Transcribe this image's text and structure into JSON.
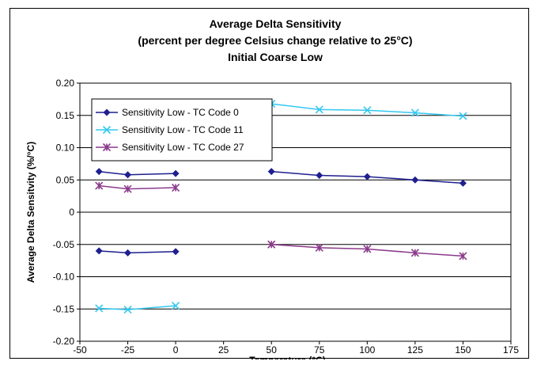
{
  "chart_data": {
    "type": "line",
    "title": [
      "Average Delta Sensitivity",
      "(percent per degree Celsius change relative to 25°C)",
      "Initial Coarse Low"
    ],
    "xlabel": "Temperature (°C)",
    "ylabel": "Average Delta Sensitvity (%/°C)",
    "xlim": [
      -50,
      175
    ],
    "ylim": [
      -0.2,
      0.2
    ],
    "xticks": [
      -50,
      -25,
      0,
      25,
      50,
      75,
      100,
      125,
      150,
      175
    ],
    "xtick_labels": [
      "-50",
      "-25",
      "0",
      "25",
      "50",
      "75",
      "100",
      "125",
      "150",
      "175"
    ],
    "yticks": [
      0.2,
      0.15,
      0.1,
      0.05,
      0,
      -0.05,
      -0.1,
      -0.15,
      -0.2
    ],
    "ytick_labels": [
      "0.20",
      "0.15",
      "0.10",
      "0.05",
      "0",
      "-0.05",
      "-0.10",
      "-0.15",
      "-0.20"
    ],
    "grid": "horizontal",
    "legend_position": "top-left",
    "series": [
      {
        "name": "Sensitivity Low - TC Code 0",
        "color": "#1f1f8f",
        "marker": "diamond",
        "segments": [
          [
            [
              -40,
              0.063
            ],
            [
              -25,
              0.058
            ],
            [
              0,
              0.06
            ]
          ],
          [
            [
              -40,
              -0.06
            ],
            [
              -25,
              -0.063
            ],
            [
              0,
              -0.061
            ]
          ],
          [
            [
              50,
              0.063
            ],
            [
              75,
              0.057
            ],
            [
              100,
              0.055
            ],
            [
              125,
              0.05
            ],
            [
              150,
              0.045
            ]
          ]
        ]
      },
      {
        "name": "Sensitivity Low - TC Code 11",
        "color": "#33c8f0",
        "marker": "x",
        "segments": [
          [
            [
              -40,
              -0.149
            ],
            [
              -25,
              -0.151
            ],
            [
              0,
              -0.145
            ]
          ],
          [
            [
              50,
              0.168
            ],
            [
              75,
              0.159
            ],
            [
              100,
              0.158
            ],
            [
              125,
              0.154
            ],
            [
              150,
              0.149
            ]
          ]
        ]
      },
      {
        "name": "Sensitivity Low - TC Code 27",
        "color": "#8b3a8b",
        "marker": "star",
        "segments": [
          [
            [
              -40,
              0.041
            ],
            [
              -25,
              0.036
            ],
            [
              0,
              0.038
            ]
          ],
          [
            [
              50,
              -0.05
            ],
            [
              75,
              -0.055
            ],
            [
              100,
              -0.057
            ],
            [
              125,
              -0.063
            ],
            [
              150,
              -0.068
            ]
          ]
        ]
      }
    ]
  }
}
